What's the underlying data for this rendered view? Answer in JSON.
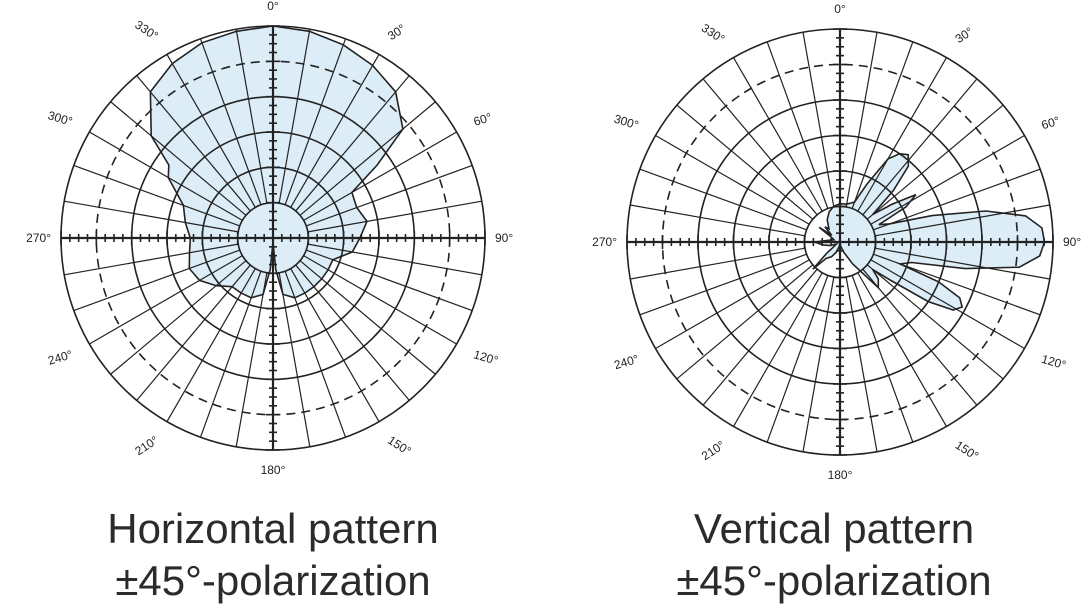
{
  "chart_data": [
    {
      "type": "polar",
      "chart_kind": "antenna-radiation-pattern",
      "angle_labels": [
        "0°",
        "30°",
        "60°",
        "90°",
        "120°",
        "150°",
        "180°",
        "210°",
        "240°",
        "270°",
        "300°",
        "330°"
      ],
      "caption": [
        "Horizontal pattern",
        "±45°-polarization"
      ],
      "rings": 6,
      "grid": true,
      "fill_color": "#dcedf7",
      "line_color": "#222222",
      "series": [
        {
          "angles_deg": [
            0,
            10,
            20,
            30,
            40,
            50,
            55,
            60,
            70,
            80,
            90,
            100,
            110,
            120,
            130,
            140,
            150,
            160,
            170,
            175,
            180,
            185,
            190,
            200,
            210,
            220,
            230,
            240,
            250,
            260,
            270,
            280,
            290,
            300,
            305,
            310,
            320,
            330,
            340,
            350
          ],
          "values": [
            1.0,
            0.99,
            0.97,
            0.94,
            0.9,
            0.8,
            0.6,
            0.43,
            0.42,
            0.45,
            0.41,
            0.38,
            0.3,
            0.3,
            0.3,
            0.3,
            0.3,
            0.3,
            0.27,
            0.15,
            0.02,
            0.15,
            0.27,
            0.3,
            0.3,
            0.3,
            0.35,
            0.4,
            0.42,
            0.4,
            0.39,
            0.42,
            0.45,
            0.57,
            0.6,
            0.75,
            0.9,
            0.95,
            0.98,
            0.99
          ]
        }
      ]
    },
    {
      "type": "polar",
      "chart_kind": "antenna-radiation-pattern",
      "angle_labels": [
        "0°",
        "30°",
        "60°",
        "90°",
        "120°",
        "150°",
        "180°",
        "210°",
        "240°",
        "270°",
        "300°",
        "330°"
      ],
      "caption": [
        "Vertical pattern",
        "±45°-polarization"
      ],
      "rings": 6,
      "grid": true,
      "fill_color": "#dcedf7",
      "line_color": "#222222",
      "series": [
        {
          "angles_deg": [
            0,
            10,
            20,
            25,
            30,
            34,
            38,
            42,
            46,
            50,
            54,
            58,
            62,
            66,
            70,
            74,
            78,
            82,
            86,
            90,
            94,
            98,
            102,
            106,
            110,
            112,
            115,
            118,
            121,
            124,
            127,
            130,
            134,
            140,
            150,
            160,
            170,
            180,
            190,
            200,
            210,
            220,
            225,
            230,
            235,
            240,
            250,
            260,
            270,
            280,
            290,
            300,
            305,
            310,
            315,
            320,
            330,
            340,
            350
          ],
          "values": [
            0.18,
            0.18,
            0.2,
            0.3,
            0.45,
            0.5,
            0.52,
            0.48,
            0.35,
            0.2,
            0.3,
            0.42,
            0.35,
            0.2,
            0.25,
            0.45,
            0.7,
            0.88,
            0.95,
            0.96,
            0.94,
            0.85,
            0.6,
            0.35,
            0.3,
            0.5,
            0.62,
            0.65,
            0.62,
            0.5,
            0.3,
            0.2,
            0.25,
            0.28,
            0.12,
            0.05,
            0.02,
            0.0,
            0.02,
            0.05,
            0.08,
            0.1,
            0.18,
            0.08,
            0.03,
            0.02,
            0.05,
            0.08,
            0.12,
            0.05,
            0.03,
            0.05,
            0.12,
            0.05,
            0.1,
            0.08,
            0.12,
            0.15,
            0.17
          ]
        }
      ]
    }
  ]
}
